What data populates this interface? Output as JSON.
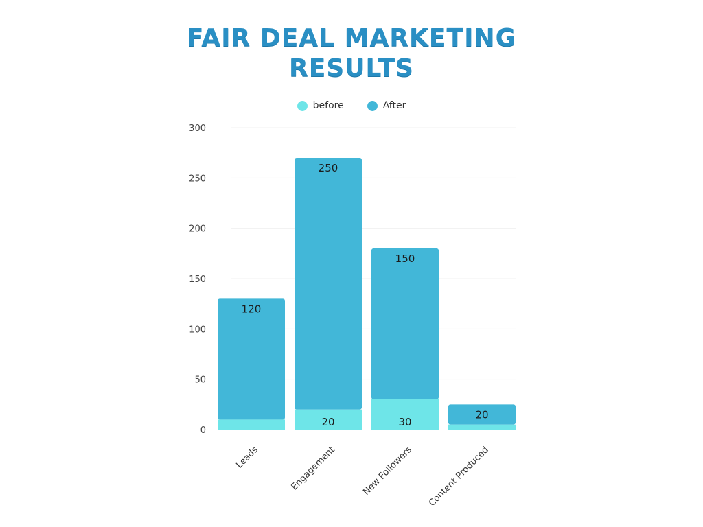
{
  "chart_data": {
    "type": "bar",
    "stacked": true,
    "title_lines": [
      "FAIR DEAL MARKETING",
      "RESULTS"
    ],
    "categories": [
      "Leads",
      "Engagement",
      "New Followers",
      "Content Produced"
    ],
    "series": [
      {
        "name": "before",
        "values": [
          10,
          20,
          30,
          5
        ],
        "labels": [
          "",
          "20",
          "30",
          ""
        ],
        "color": "#6ee5e8"
      },
      {
        "name": "After",
        "values": [
          120,
          250,
          150,
          20
        ],
        "labels": [
          "120",
          "250",
          "150",
          "20"
        ],
        "color": "#42b7d8"
      }
    ],
    "ylim": [
      0,
      300
    ],
    "yticks": [
      0,
      50,
      100,
      150,
      200,
      250,
      300
    ],
    "grid": true,
    "legend_position": "top-center"
  }
}
